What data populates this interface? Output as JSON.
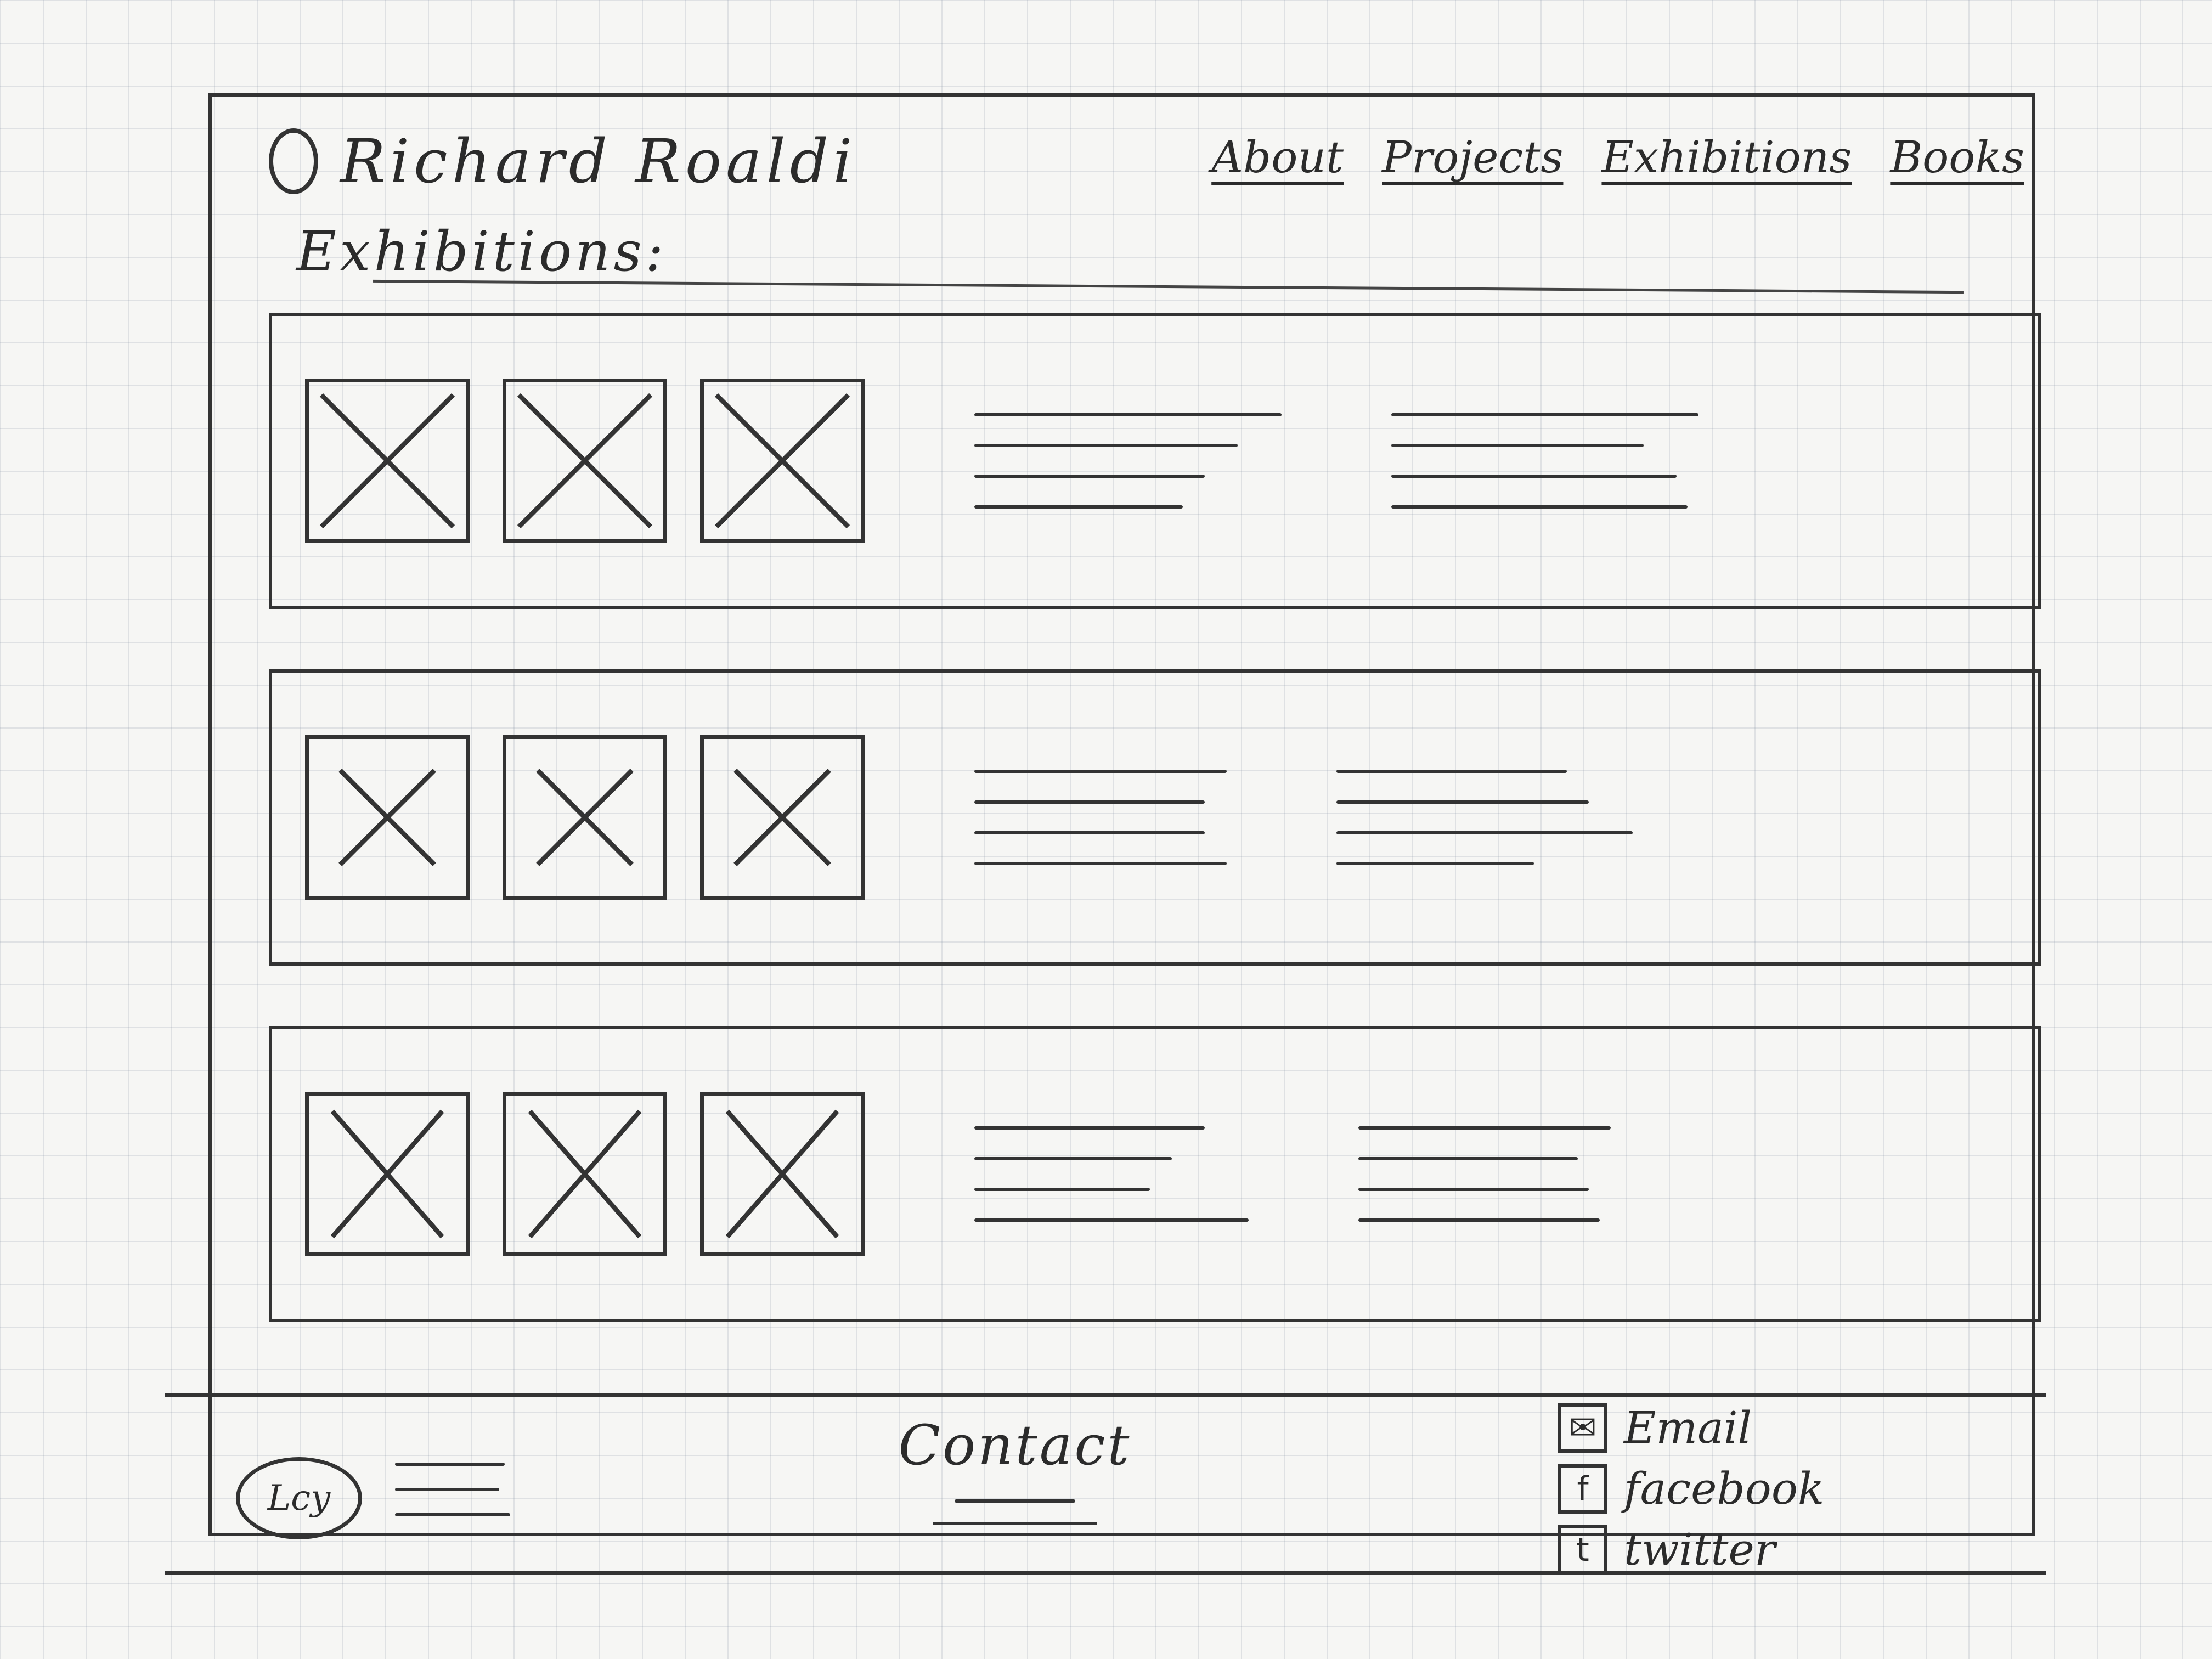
{
  "header": {
    "brand_name": "Richard Roaldi",
    "nav": [
      "About",
      "Projects",
      "Exhibitions",
      "Books"
    ]
  },
  "main": {
    "section_title": "Exhibitions:",
    "rows": [
      {
        "thumbs": 3,
        "text_columns": 2
      },
      {
        "thumbs": 3,
        "text_columns": 2
      },
      {
        "thumbs": 3,
        "text_columns": 2
      }
    ]
  },
  "footer": {
    "logo_text": "Lcy",
    "center_title": "Contact",
    "social": [
      {
        "icon": "email-icon",
        "label": "Email"
      },
      {
        "icon": "facebook-icon",
        "label": "facebook"
      },
      {
        "icon": "twitter-icon",
        "label": "twitter"
      }
    ]
  }
}
